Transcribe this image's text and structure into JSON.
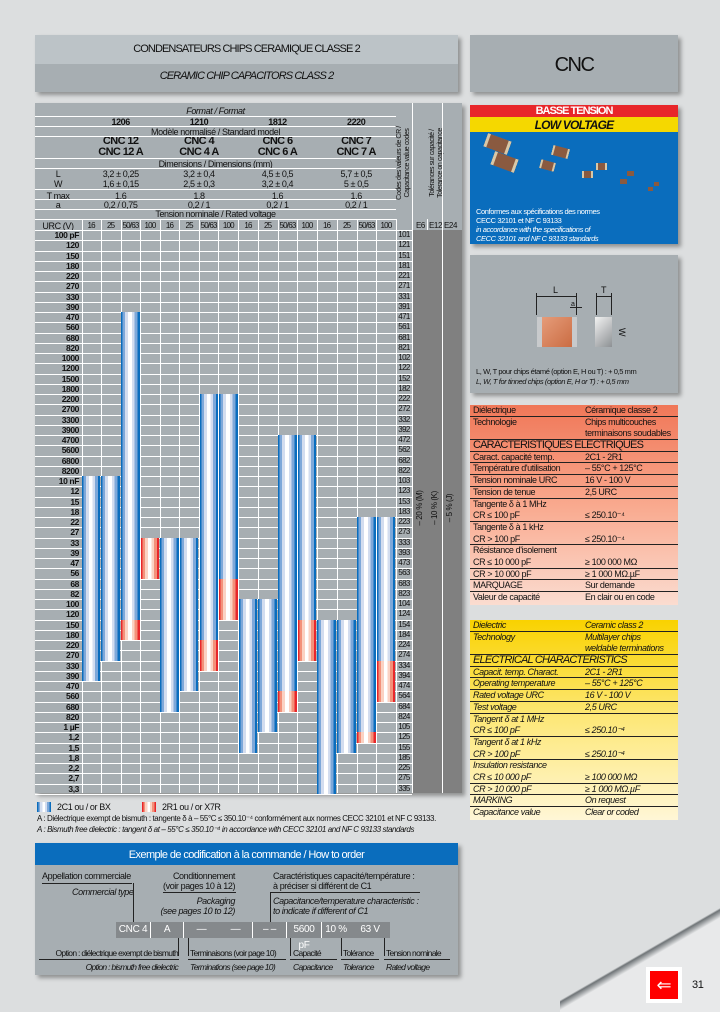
{
  "header": {
    "title_fr": "CONDENSATEURS CHIPS CERAMIQUE CLASSE 2",
    "title_en": "CERAMIC CHIP CAPACITORS CLASS 2",
    "series": "CNC"
  },
  "table": {
    "format_label": "Format / Format",
    "formats": [
      "1206",
      "1210",
      "1812",
      "2220"
    ],
    "model_label": "Modèle normalisé / Standard model",
    "models": [
      [
        "CNC 12",
        "CNC 12 A"
      ],
      [
        "CNC 4",
        "CNC 4 A"
      ],
      [
        "CNC 6",
        "CNC 6 A"
      ],
      [
        "CNC 7",
        "CNC 7 A"
      ]
    ],
    "dimensions_label": "Dimensions / Dimensions (mm)",
    "dim_rows": [
      {
        "label": "L",
        "values": [
          "3,2 ± 0,25",
          "3,2 ± 0,4",
          "4,5 ± 0,5",
          "5,7 ± 0,5"
        ]
      },
      {
        "label": "W",
        "values": [
          "1,6 ± 0,15",
          "2,5 ± 0,3",
          "3,2 ± 0,4",
          "5 ± 0,5"
        ]
      },
      {
        "label": "T max",
        "values": [
          "1,6",
          "1,8",
          "1,6",
          "1,6"
        ]
      },
      {
        "label": "a",
        "values": [
          "0,2 / 0,75",
          "0,2 / 1",
          "0,2 / 1",
          "0,2 / 1"
        ]
      }
    ],
    "voltage_label": "Tension nominale / Rated voltage",
    "urc_label": "URC (V)",
    "voltages": [
      "16",
      "25",
      "50/63",
      "100",
      "16",
      "25",
      "50/63",
      "100",
      "16",
      "25",
      "50/63",
      "100",
      "16",
      "25",
      "50/63",
      "100"
    ],
    "code_header": "Codes des valeurs de CR / Capacitance value codes",
    "tolerance_header": "Tolérances sur capacité / Tolerance on capacitance",
    "series_headers": [
      "E6",
      "E12",
      "E24"
    ],
    "tolerances": [
      "– 20 % (M)",
      "– 10 % (K)",
      "– 5 % (J)"
    ],
    "rows": [
      [
        "100 pF",
        "101"
      ],
      [
        "120",
        "121"
      ],
      [
        "150",
        "151"
      ],
      [
        "180",
        "181"
      ],
      [
        "220",
        "221"
      ],
      [
        "270",
        "271"
      ],
      [
        "330",
        "331"
      ],
      [
        "390",
        "391"
      ],
      [
        "470",
        "471"
      ],
      [
        "560",
        "561"
      ],
      [
        "680",
        "681"
      ],
      [
        "820",
        "821"
      ],
      [
        "1000",
        "102"
      ],
      [
        "1200",
        "122"
      ],
      [
        "1500",
        "152"
      ],
      [
        "1800",
        "182"
      ],
      [
        "2200",
        "222"
      ],
      [
        "2700",
        "272"
      ],
      [
        "3300",
        "332"
      ],
      [
        "3900",
        "392"
      ],
      [
        "4700",
        "472"
      ],
      [
        "5600",
        "562"
      ],
      [
        "6800",
        "682"
      ],
      [
        "8200",
        "822"
      ],
      [
        "10 nF",
        "103"
      ],
      [
        "12",
        "123"
      ],
      [
        "15",
        "153"
      ],
      [
        "18",
        "183"
      ],
      [
        "22",
        "223"
      ],
      [
        "27",
        "273"
      ],
      [
        "33",
        "333"
      ],
      [
        "39",
        "393"
      ],
      [
        "47",
        "473"
      ],
      [
        "56",
        "563"
      ],
      [
        "68",
        "683"
      ],
      [
        "82",
        "823"
      ],
      [
        "100",
        "104"
      ],
      [
        "120",
        "124"
      ],
      [
        "150",
        "154"
      ],
      [
        "180",
        "184"
      ],
      [
        "220",
        "224"
      ],
      [
        "270",
        "274"
      ],
      [
        "330",
        "334"
      ],
      [
        "390",
        "394"
      ],
      [
        "470",
        "474"
      ],
      [
        "560",
        "564"
      ],
      [
        "680",
        "684"
      ],
      [
        "820",
        "824"
      ],
      [
        "1 µF",
        "105"
      ],
      [
        "1,2",
        "125"
      ],
      [
        "1,5",
        "155"
      ],
      [
        "1,8",
        "185"
      ],
      [
        "2,2",
        "225"
      ],
      [
        "2,7",
        "275"
      ],
      [
        "3,3",
        "335"
      ]
    ],
    "ranges": [
      {
        "column": 1,
        "blue": [
          "103",
          "394"
        ],
        "red": null
      },
      {
        "column": 2,
        "blue": [
          "103",
          "274"
        ],
        "red": null
      },
      {
        "column": 3,
        "blue": [
          "471",
          "124"
        ],
        "red": [
          "154",
          "184"
        ]
      },
      {
        "column": 4,
        "blue": null,
        "red": [
          "333",
          "563"
        ]
      },
      {
        "column": 5,
        "blue": [
          "333",
          "684"
        ],
        "red": null
      },
      {
        "column": 6,
        "blue": [
          "333",
          "474"
        ],
        "red": null
      },
      {
        "column": 7,
        "blue": [
          "222",
          "184"
        ],
        "red": [
          "224",
          "334"
        ]
      },
      {
        "column": 8,
        "blue": [
          "222",
          "563"
        ],
        "red": [
          "683",
          "124"
        ]
      },
      {
        "column": 9,
        "blue": [
          "104",
          "155"
        ],
        "red": null
      },
      {
        "column": 10,
        "blue": [
          "104",
          "105"
        ],
        "red": null
      },
      {
        "column": 11,
        "blue": [
          "472",
          "474"
        ],
        "red": [
          "564",
          "684"
        ]
      },
      {
        "column": 12,
        "blue": [
          "472",
          "124"
        ],
        "red": [
          "154",
          "274"
        ]
      },
      {
        "column": 13,
        "blue": [
          "154",
          "335"
        ],
        "red": null
      },
      {
        "column": 14,
        "blue": [
          "154",
          "155"
        ],
        "red": null
      },
      {
        "column": 15,
        "blue": [
          "223",
          "105"
        ],
        "red": [
          "125",
          "125"
        ]
      },
      {
        "column": 16,
        "blue": [
          "223",
          "274"
        ],
        "red": [
          "334",
          "564"
        ]
      }
    ]
  },
  "legend": {
    "blue": "2C1 ou / or BX",
    "red": "2R1 ou / or X7R",
    "note_fr": "A : Diélectrique exempt de bismuth : tangente δ à – 55°C ≤ 350.10⁻⁴ conformément aux normes CECC 32101 et NF C 93133.",
    "note_en": "A : Bismuth free dielectric : tangent δ at – 55°C ≤ 350.10⁻⁴ in accordance with CECC 32101 and NF C 93133 standards",
    "colors": {
      "blue": "#0a6dbd",
      "red": "#e8262a"
    }
  },
  "banner": {
    "fr": "BASSE TENSION",
    "en": "LOW VOLTAGE",
    "text": [
      "Conformes aux spécifications des normes",
      "CECC 32101 et NF C 93133",
      "in accordance with the specifications of",
      "CECC 32101 and NF C 93133 standards"
    ]
  },
  "diagram": {
    "labels": {
      "L": "L",
      "T": "T",
      "a": "a",
      "W": "W"
    },
    "note_fr": "L, W, T pour chips étamé (option E, H ou T) : + 0,5 mm",
    "note_en": "L, W, T for tinned chips (option E, H or T) : + 0,5 mm"
  },
  "spec_fr": [
    [
      "Diélectrique",
      "Céramique classe 2"
    ],
    [
      "Technologie",
      "Chips multicouches"
    ],
    [
      "",
      "terminaisons soudables"
    ],
    [
      "CARACTERISTIQUES ELECTRIQUES"
    ],
    [
      "Caract. capacité temp.",
      "2C1 - 2R1"
    ],
    [
      "Température d'utilisation",
      "– 55°C + 125°C"
    ],
    [
      "Tension nominale URC",
      "16 V - 100 V"
    ],
    [
      "Tension de tenue",
      "2,5 URC"
    ],
    [
      "Tangente δ à 1 MHz",
      ""
    ],
    [
      "CR ≤ 100 pF",
      "≤ 250.10⁻⁴"
    ],
    [
      "Tangente δ à 1 kHz",
      ""
    ],
    [
      "CR > 100 pF",
      "≤ 250.10⁻⁴"
    ],
    [
      "Résistance d'isolement",
      ""
    ],
    [
      "CR ≤ 10 000 pF",
      "≥ 100 000 MΩ"
    ],
    [
      "CR > 10 000 pF",
      "≥ 1 000 MΩ.µF"
    ],
    [
      "MARQUAGE",
      "Sur demande"
    ],
    [
      "Valeur de capacité",
      "En clair ou en code"
    ]
  ],
  "spec_en": [
    [
      "Dielectric",
      "Ceramic class 2"
    ],
    [
      "Technology",
      "Multilayer chips"
    ],
    [
      "",
      "weldable terminations"
    ],
    [
      "ELECTRICAL CHARACTERISTICS"
    ],
    [
      "Capacit. temp. Charact.",
      "2C1 - 2R1"
    ],
    [
      "Operating temperature",
      "– 55°C + 125°C"
    ],
    [
      "Rated voltage URC",
      "16 V - 100 V"
    ],
    [
      "Test voltage",
      "2,5 URC"
    ],
    [
      "Tangent δ at 1 MHz",
      ""
    ],
    [
      "CR ≤ 100 pF",
      "≤ 250.10⁻⁴"
    ],
    [
      "Tangent δ at 1 kHz",
      ""
    ],
    [
      "CR > 100 pF",
      "≤ 250.10⁻⁴"
    ],
    [
      "Insulation resistance",
      ""
    ],
    [
      "CR ≤ 10 000 pF",
      "≥ 100 000 MΩ"
    ],
    [
      "CR > 10 000 pF",
      "≥ 1 000 MΩ.µF"
    ],
    [
      "MARKING",
      "On request"
    ],
    [
      "Capacitance value",
      "Clear or coded"
    ]
  ],
  "order": {
    "title": "Exemple de codification à la commande / How to order",
    "commercial_fr": "Appellation commerciale",
    "commercial_en": "Commercial type",
    "packaging_fr": [
      "Conditionnement",
      "(voir pages 10 à 12)"
    ],
    "packaging_en": [
      "Packaging",
      "(see pages 10 to 12)"
    ],
    "char_fr": [
      "Caractéristiques capacité/température :",
      "à préciser si différent de C1"
    ],
    "char_en": [
      "Capacitance/temperature characteristic :",
      "to indicate if different of C1"
    ],
    "code": [
      "CNC 4",
      "A",
      "—",
      "—",
      "– –",
      "5600 pF",
      "10 %",
      "63 V"
    ],
    "option_fr": "Option : diélectrique exempt de bismuth",
    "option_en": "Option : bismuth free dielectric",
    "term_fr": "Terminaisons (voir page 10)",
    "term_en": "Terminations (see page 10)",
    "cap_fr": "Capacité",
    "cap_en": "Capacitance",
    "tol_fr": "Tolérance",
    "tol_en": "Tolerance",
    "volt_fr": "Tension nominale",
    "volt_en": "Rated voltage"
  },
  "page_number": "31"
}
